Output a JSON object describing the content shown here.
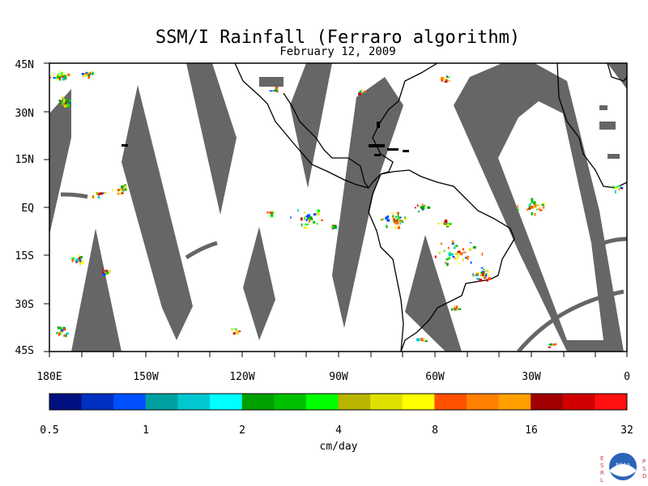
{
  "title": "SSM/I Rainfall (Ferraro algorithm)",
  "date": "February 12, 2009",
  "map": {
    "lon_range": [
      180,
      360
    ],
    "lat_range": [
      -45,
      45
    ],
    "lat_labels": [
      "45N",
      "30N",
      "15N",
      "EQ",
      "15S",
      "30S",
      "45S"
    ],
    "lon_labels": [
      "180E",
      "150W",
      "120W",
      "90W",
      "60W",
      "30W",
      "0"
    ],
    "swath_color": "#666666",
    "land_outline_color": "#000000",
    "background_color": "#ffffff"
  },
  "colorbar": {
    "unit_label": "cm/day",
    "tick_labels": [
      "0.5",
      "1",
      "2",
      "4",
      "8",
      "16",
      "32"
    ],
    "colors": [
      "#001080",
      "#0030c0",
      "#0050ff",
      "#00a0a0",
      "#00c8d0",
      "#00ffff",
      "#00a000",
      "#00c000",
      "#00ff00",
      "#b8b400",
      "#e0e000",
      "#ffff00",
      "#ff5000",
      "#ff8000",
      "#ffa000",
      "#a00000",
      "#d00000",
      "#ff1010"
    ]
  },
  "logo": {
    "left_letters": [
      "E",
      "S",
      "R",
      "L"
    ],
    "right_letters": [
      "P",
      "S",
      "D"
    ],
    "center_text": "NOAA"
  }
}
